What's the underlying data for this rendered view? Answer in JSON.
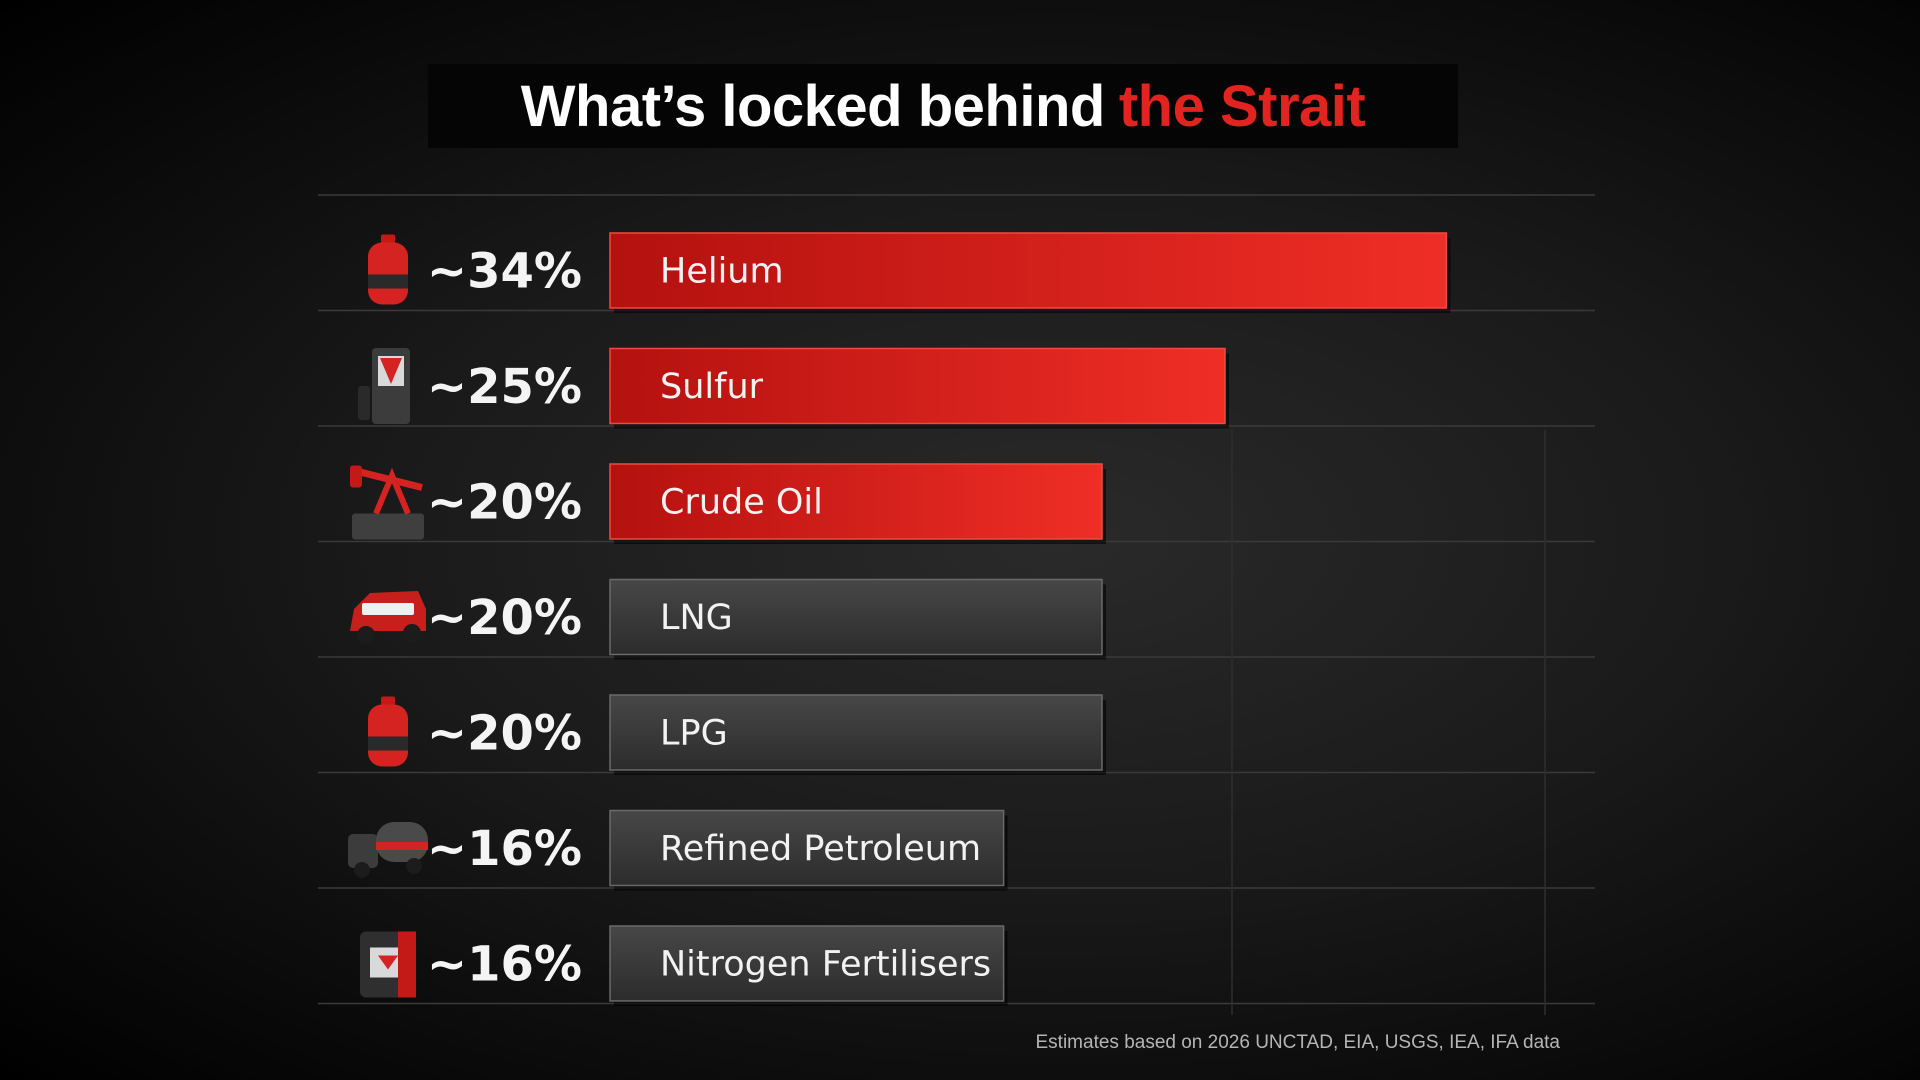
{
  "title": {
    "main": "What’s locked behind",
    "accent": "the Strait"
  },
  "colors": {
    "highlight": "#e2231f",
    "muted": "#3b3b3b",
    "background": "#1a1a1a"
  },
  "chart_data": {
    "type": "bar",
    "orientation": "horizontal",
    "categories": [
      "Helium",
      "Sulfur",
      "Crude Oil",
      "LNG",
      "LPG",
      "Refined Petroleum",
      "Nitrogen Fertilisers"
    ],
    "values": [
      34,
      25,
      20,
      20,
      20,
      16,
      16
    ],
    "value_labels": [
      "~34%",
      "~25%",
      "~20%",
      "~20%",
      "~20%",
      "~16%",
      "~16%"
    ],
    "highlighted": [
      true,
      true,
      true,
      false,
      false,
      false,
      false
    ],
    "icons": [
      "gas-cylinder-icon",
      "fuel-pump-icon",
      "oil-pumpjack-icon",
      "lng-truck-icon",
      "gas-cylinder-icon",
      "tanker-truck-icon",
      "fertiliser-drum-icon"
    ],
    "grid": true
  },
  "source_note": "Estimates based on 2026 UNCTAD, EIA, USGS, IEA, IFA data"
}
